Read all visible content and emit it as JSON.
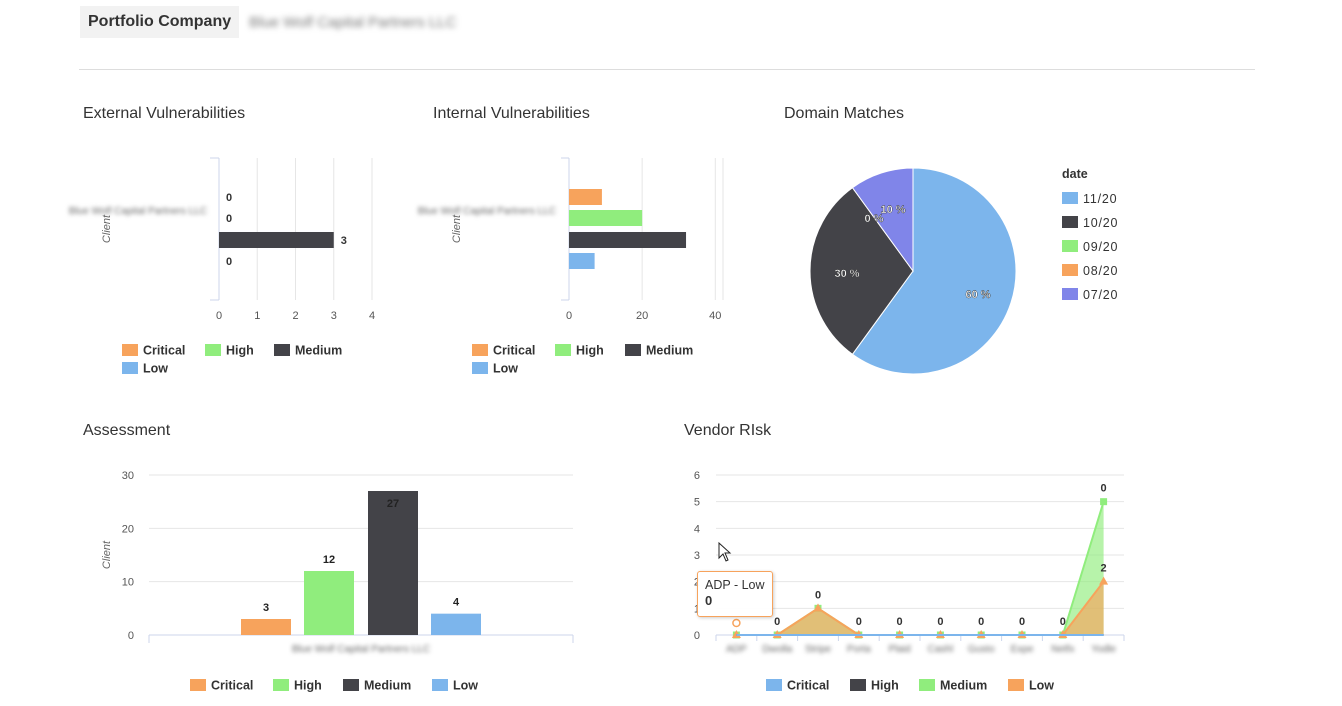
{
  "header": {
    "label": "Portfolio Company",
    "company": "Blue Wolf Capital Partners LLC"
  },
  "colors": {
    "critical": "#f7a35c",
    "high": "#90ed7d",
    "medium": "#434348",
    "low": "#7cb5ec",
    "d0720": "#8085e9"
  },
  "legend_labels": {
    "critical": "Critical",
    "high": "High",
    "medium": "Medium",
    "low": "Low"
  },
  "external": {
    "title": "External Vulnerabilities",
    "yaxis_title": "Client",
    "category": "Blue Wolf Capital Partners LLC",
    "ticks": [
      "0",
      "1",
      "2",
      "3",
      "4"
    ],
    "chart_data": {
      "type": "bar",
      "orientation": "horizontal",
      "categories": [
        "Blue Wolf Capital Partners LLC"
      ],
      "series": [
        {
          "name": "Critical",
          "values": [
            0
          ],
          "label": "0"
        },
        {
          "name": "High",
          "values": [
            0
          ],
          "label": "0"
        },
        {
          "name": "Medium",
          "values": [
            3
          ],
          "label": "3"
        },
        {
          "name": "Low",
          "values": [
            0
          ],
          "label": "0"
        }
      ],
      "xlim": [
        0,
        4
      ],
      "ylabel": "Client"
    }
  },
  "internal": {
    "title": "Internal Vulnerabilities",
    "yaxis_title": "Client",
    "category": "Blue Wolf Capital Partners LLC",
    "ticks": [
      "0",
      "20",
      "40"
    ],
    "chart_data": {
      "type": "bar",
      "orientation": "horizontal",
      "categories": [
        "Blue Wolf Capital Partners LLC"
      ],
      "series": [
        {
          "name": "Critical",
          "values": [
            9
          ]
        },
        {
          "name": "High",
          "values": [
            20
          ]
        },
        {
          "name": "Medium",
          "values": [
            32
          ]
        },
        {
          "name": "Low",
          "values": [
            7
          ]
        }
      ],
      "xlim": [
        0,
        40
      ],
      "ylabel": "Client"
    }
  },
  "domain": {
    "title": "Domain Matches",
    "legend_title": "date",
    "chart_data": {
      "type": "pie",
      "slices": [
        {
          "name": "11/20",
          "value": 60,
          "label": "60 %"
        },
        {
          "name": "10/20",
          "value": 30,
          "label": "30 %"
        },
        {
          "name": "09/20",
          "value": 0,
          "label": "0 %"
        },
        {
          "name": "08/20",
          "value": 0,
          "label": "0 %"
        },
        {
          "name": "07/20",
          "value": 10,
          "label": "10 %"
        }
      ],
      "legend_position": "right"
    }
  },
  "assessment": {
    "title": "Assessment",
    "yaxis_title": "Client",
    "category": "Blue Wolf Capital Partners LLC",
    "ticks": [
      "0",
      "10",
      "20",
      "30"
    ],
    "chart_data": {
      "type": "bar",
      "categories": [
        "Blue Wolf Capital Partners LLC"
      ],
      "series": [
        {
          "name": "Critical",
          "values": [
            3
          ],
          "label": "3"
        },
        {
          "name": "High",
          "values": [
            12
          ],
          "label": "12"
        },
        {
          "name": "Medium",
          "values": [
            27
          ],
          "label": "27"
        },
        {
          "name": "Low",
          "values": [
            4
          ],
          "label": "4"
        }
      ],
      "ylim": [
        0,
        30
      ],
      "ylabel": "Client"
    }
  },
  "vendor": {
    "title": "Vendor RIsk",
    "ticks": [
      "0",
      "1",
      "2",
      "3",
      "4",
      "5",
      "6"
    ],
    "categories": [
      "ADP",
      "Dwolla",
      "Stripe",
      "Porta",
      "Plaid",
      "Cashl",
      "Gusto",
      "Expe",
      "Netfx",
      "Yodle"
    ],
    "chart_data": {
      "type": "area",
      "categories": [
        "ADP",
        "Dwolla",
        "Stripe",
        "Porta",
        "Plaid",
        "Cashl",
        "Gusto",
        "Expe",
        "Netfx",
        "Yodle"
      ],
      "series": [
        {
          "name": "Low",
          "values": [
            0,
            0,
            1,
            0,
            0,
            0,
            0,
            0,
            0,
            2
          ]
        },
        {
          "name": "Medium",
          "values": [
            0,
            0,
            1,
            0,
            0,
            0,
            0,
            0,
            0,
            5
          ]
        },
        {
          "name": "High",
          "values": [
            0,
            0,
            0,
            0,
            0,
            0,
            0,
            0,
            0,
            0
          ]
        },
        {
          "name": "Critical",
          "values": [
            0,
            0,
            0,
            0,
            0,
            0,
            0,
            0,
            0,
            0
          ]
        }
      ],
      "data_labels": [
        "0",
        "0",
        "0",
        "0",
        "0",
        "0",
        "0",
        "0",
        "0",
        "0",
        "2"
      ],
      "ylim": [
        0,
        6
      ]
    },
    "tooltip": {
      "name": "ADP - Low",
      "value": "0"
    }
  }
}
